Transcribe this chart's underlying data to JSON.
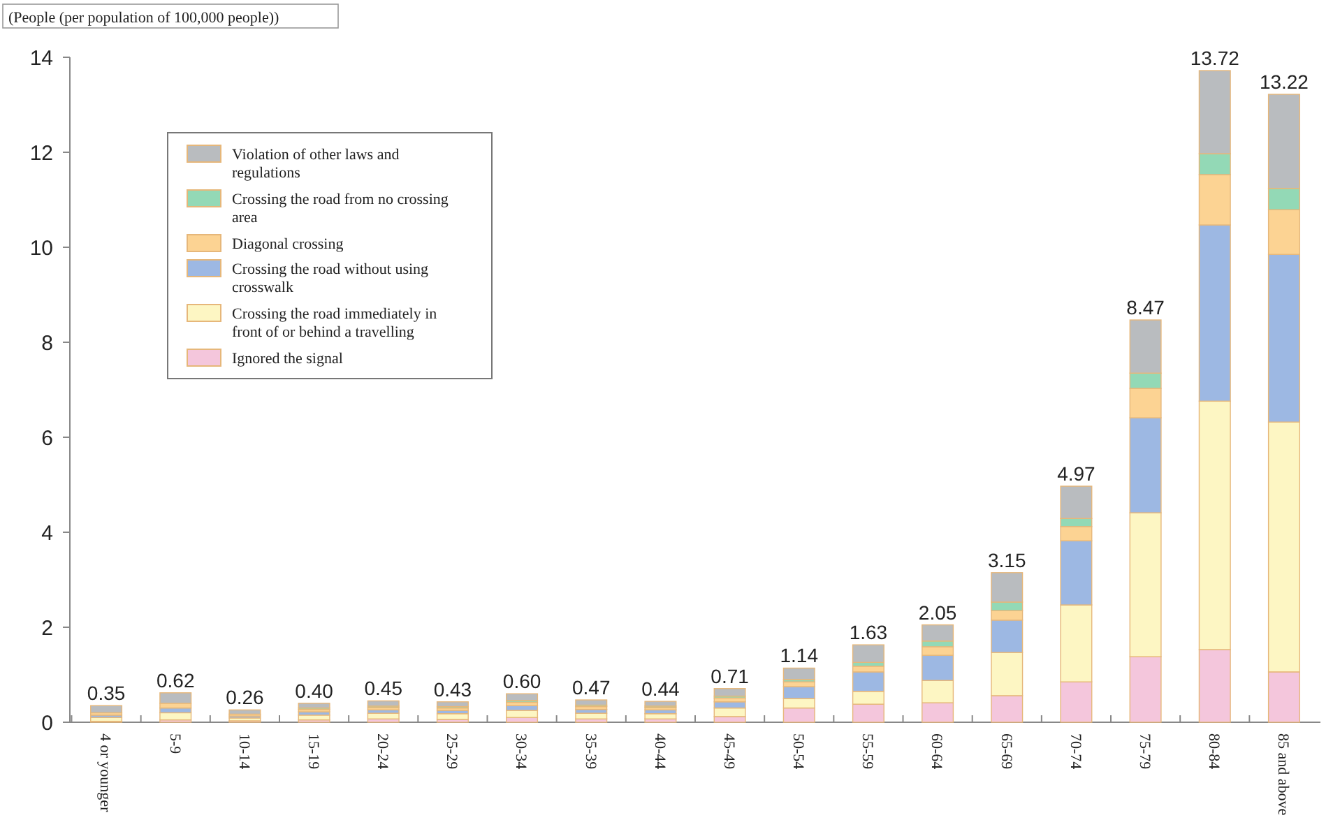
{
  "chart_data": {
    "type": "bar",
    "stacked": true,
    "ylabel": "(People (per population of 100,000 people))",
    "categories": [
      "4 or younger",
      "5-9",
      "10-14",
      "15-19",
      "20-24",
      "25-29",
      "30-34",
      "35-39",
      "40-44",
      "45-49",
      "50-54",
      "55-59",
      "60-64",
      "65-69",
      "70-74",
      "75-79",
      "80-84",
      "85 and above"
    ],
    "series": [
      {
        "name": "Ignored the signal",
        "color": "#f4c6dc",
        "values": [
          0.02,
          0.05,
          0.03,
          0.05,
          0.07,
          0.06,
          0.1,
          0.07,
          0.07,
          0.12,
          0.3,
          0.38,
          0.41,
          0.56,
          0.85,
          1.38,
          1.53,
          1.06
        ]
      },
      {
        "name": "Crossing the road immediately in front of or behind a travelling",
        "color": "#fdf6c3",
        "values": [
          0.08,
          0.15,
          0.06,
          0.1,
          0.12,
          0.12,
          0.15,
          0.12,
          0.11,
          0.18,
          0.2,
          0.27,
          0.47,
          0.91,
          1.62,
          3.03,
          5.23,
          5.26
        ]
      },
      {
        "name": "Crossing the road without using crosswalk",
        "color": "#9db8e3",
        "values": [
          0.05,
          0.1,
          0.04,
          0.07,
          0.07,
          0.07,
          0.1,
          0.08,
          0.08,
          0.13,
          0.25,
          0.41,
          0.53,
          0.68,
          1.35,
          2.0,
          3.71,
          3.53
        ]
      },
      {
        "name": "Diagonal crossing",
        "color": "#fcd393",
        "values": [
          0.05,
          0.1,
          0.04,
          0.05,
          0.05,
          0.05,
          0.07,
          0.06,
          0.05,
          0.08,
          0.1,
          0.12,
          0.18,
          0.2,
          0.3,
          0.62,
          1.06,
          0.94
        ]
      },
      {
        "name": "Crossing the road from no crossing area",
        "color": "#93d9b6",
        "values": [
          null,
          null,
          null,
          0.03,
          0.03,
          0.03,
          0.04,
          0.03,
          0.03,
          0.04,
          0.05,
          0.08,
          0.12,
          0.18,
          0.17,
          0.32,
          0.44,
          0.45
        ]
      },
      {
        "name": "Violation of other laws and regulations",
        "color": "#b9bcbf",
        "values": [
          0.15,
          0.22,
          0.09,
          0.1,
          0.11,
          0.1,
          0.14,
          0.11,
          0.1,
          0.16,
          0.24,
          0.37,
          0.34,
          0.62,
          0.68,
          1.12,
          1.75,
          1.98
        ]
      }
    ],
    "totals": [
      "0.35",
      "0.62",
      "0.26",
      "0.40",
      "0.45",
      "0.43",
      "0.60",
      "0.47",
      "0.44",
      "0.71",
      "1.14",
      "1.63",
      "2.05",
      "3.15",
      "4.97",
      "8.47",
      "13.72",
      "13.22"
    ],
    "ylim": [
      0,
      14
    ],
    "yticks": [
      0,
      2,
      4,
      6,
      8,
      10,
      12,
      14
    ],
    "legend": "top left"
  }
}
